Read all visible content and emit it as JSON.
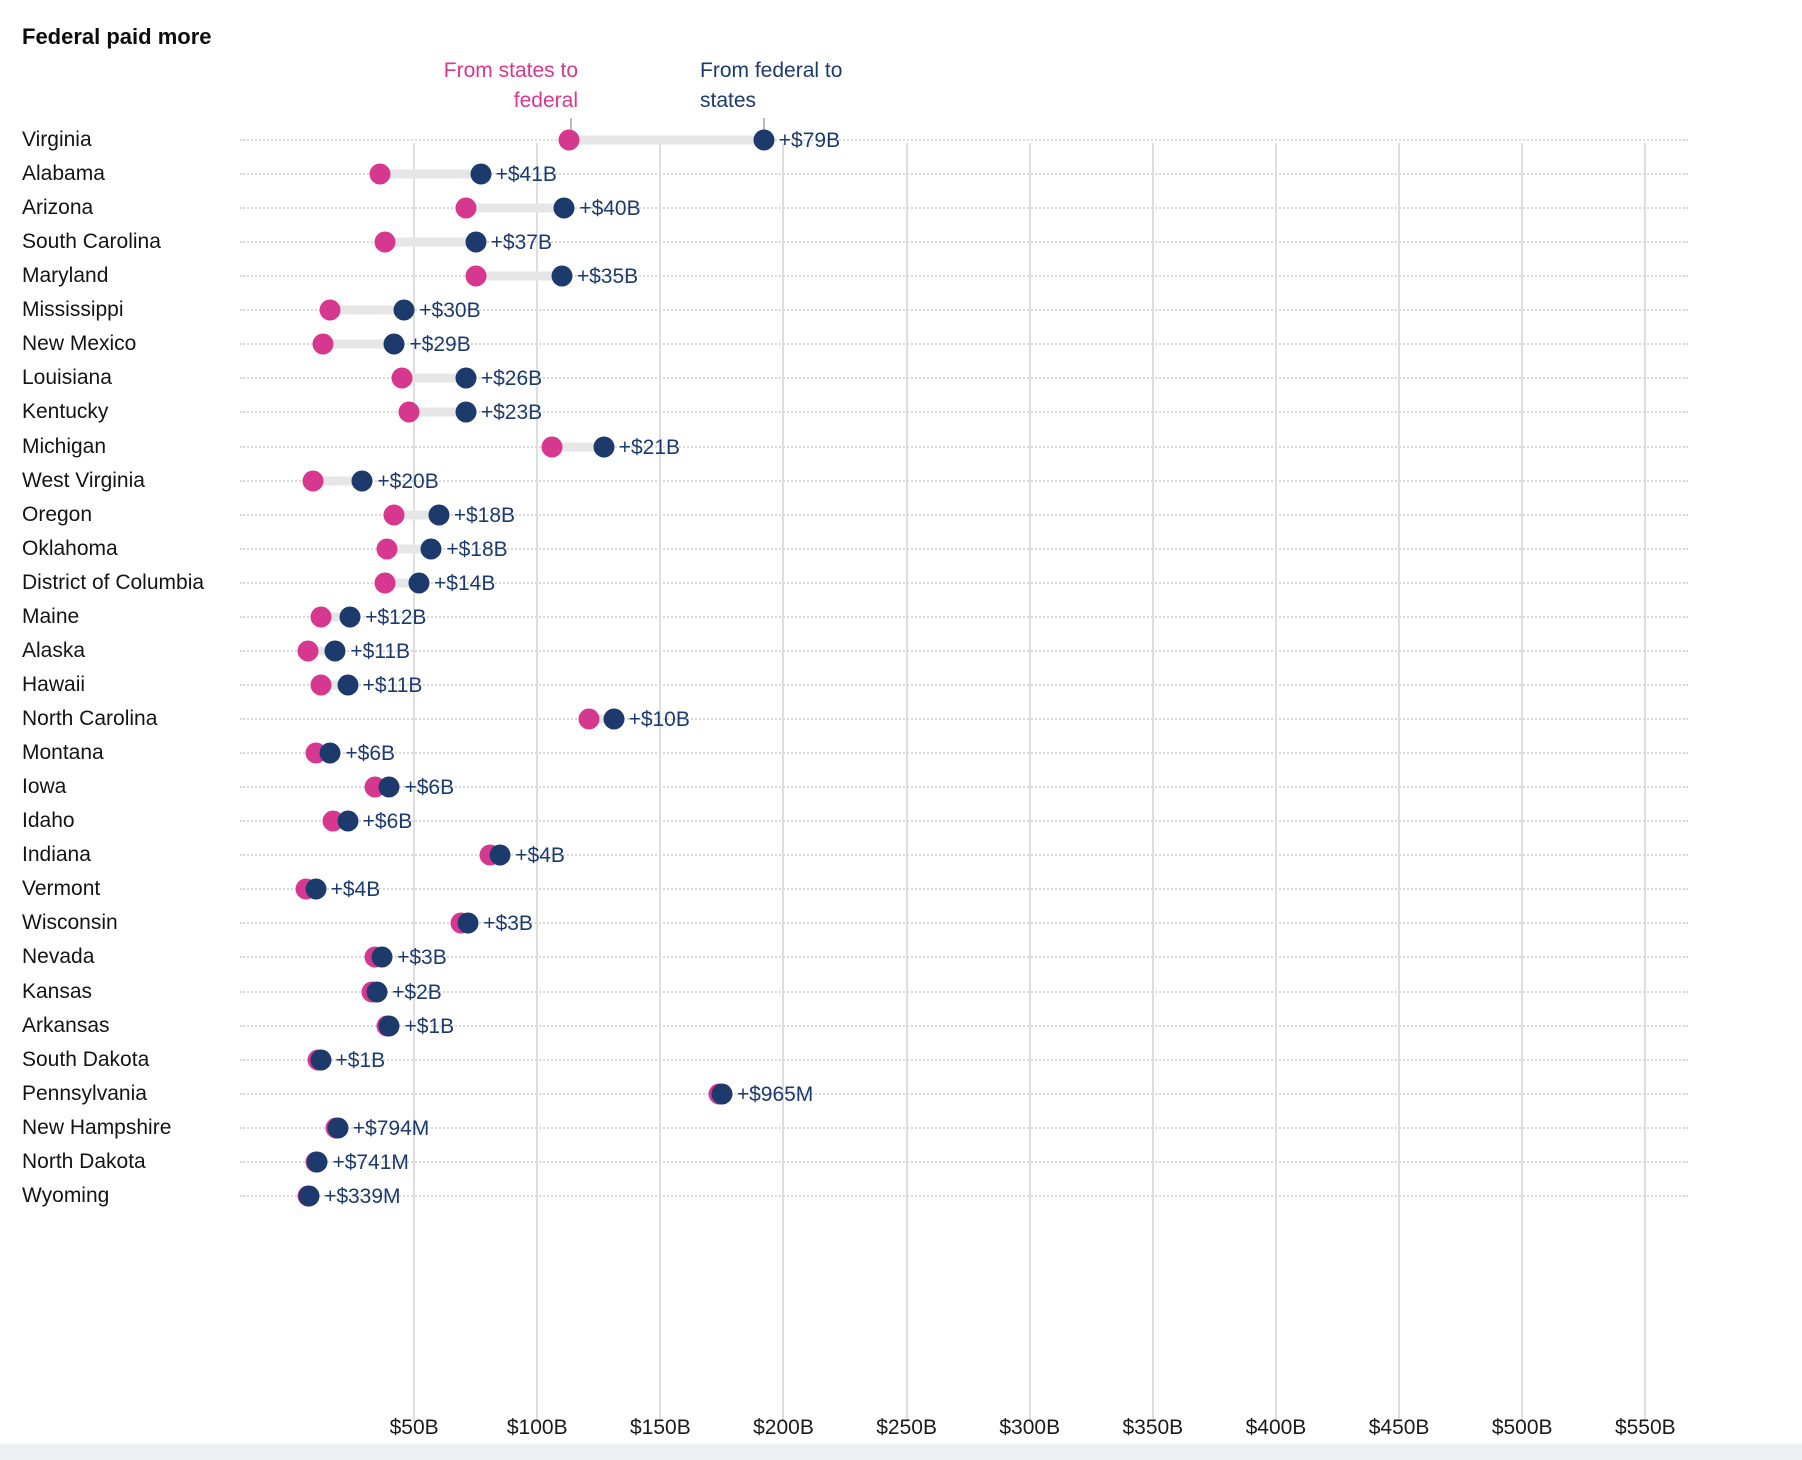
{
  "title": "Federal paid more",
  "legend": {
    "pink_label_line1": "From states to",
    "pink_label_line2": "federal",
    "navy_label_line1": "From federal to",
    "navy_label_line2": "states"
  },
  "colors": {
    "pink": "#d6378f",
    "navy": "#1d3a6d",
    "value_text": "#1d3a6d",
    "gridline": "#dedede",
    "guide_dotted": "#d9d9d9",
    "connector": "#e6e6e6"
  },
  "chart_data": {
    "type": "dumbbell",
    "title": "Federal paid more",
    "series": [
      {
        "name": "From states to federal",
        "color": "#d6378f"
      },
      {
        "name": "From federal to states",
        "color": "#1d3a6d"
      }
    ],
    "unit": "billions of dollars",
    "x_ticks": [
      {
        "value": 50,
        "label": "$50B"
      },
      {
        "value": 100,
        "label": "$100B"
      },
      {
        "value": 150,
        "label": "$150B"
      },
      {
        "value": 200,
        "label": "$200B"
      },
      {
        "value": 250,
        "label": "$250B"
      },
      {
        "value": 300,
        "label": "$300B"
      },
      {
        "value": 350,
        "label": "$350B"
      },
      {
        "value": 400,
        "label": "$400B"
      },
      {
        "value": 450,
        "label": "$450B"
      },
      {
        "value": 500,
        "label": "$500B"
      },
      {
        "value": 550,
        "label": "$550B"
      }
    ],
    "xlim": [
      0,
      580
    ],
    "rows": [
      {
        "state": "Virginia",
        "states_to_federal": 113,
        "federal_to_states": 192,
        "diff_label": "+$79B"
      },
      {
        "state": "Alabama",
        "states_to_federal": 36,
        "federal_to_states": 77,
        "diff_label": "+$41B"
      },
      {
        "state": "Arizona",
        "states_to_federal": 71,
        "federal_to_states": 111,
        "diff_label": "+$40B"
      },
      {
        "state": "South Carolina",
        "states_to_federal": 38,
        "federal_to_states": 75,
        "diff_label": "+$37B"
      },
      {
        "state": "Maryland",
        "states_to_federal": 75,
        "federal_to_states": 110,
        "diff_label": "+$35B"
      },
      {
        "state": "Mississippi",
        "states_to_federal": 16,
        "federal_to_states": 46,
        "diff_label": "+$30B"
      },
      {
        "state": "New Mexico",
        "states_to_federal": 13,
        "federal_to_states": 42,
        "diff_label": "+$29B"
      },
      {
        "state": "Louisiana",
        "states_to_federal": 45,
        "federal_to_states": 71,
        "diff_label": "+$26B"
      },
      {
        "state": "Kentucky",
        "states_to_federal": 48,
        "federal_to_states": 71,
        "diff_label": "+$23B"
      },
      {
        "state": "Michigan",
        "states_to_federal": 106,
        "federal_to_states": 127,
        "diff_label": "+$21B"
      },
      {
        "state": "West Virginia",
        "states_to_federal": 9,
        "federal_to_states": 29,
        "diff_label": "+$20B"
      },
      {
        "state": "Oregon",
        "states_to_federal": 42,
        "federal_to_states": 60,
        "diff_label": "+$18B"
      },
      {
        "state": "Oklahoma",
        "states_to_federal": 39,
        "federal_to_states": 57,
        "diff_label": "+$18B"
      },
      {
        "state": "District of Columbia",
        "states_to_federal": 38,
        "federal_to_states": 52,
        "diff_label": "+$14B"
      },
      {
        "state": "Maine",
        "states_to_federal": 12,
        "federal_to_states": 24,
        "diff_label": "+$12B"
      },
      {
        "state": "Alaska",
        "states_to_federal": 7,
        "federal_to_states": 18,
        "diff_label": "+$11B"
      },
      {
        "state": "Hawaii",
        "states_to_federal": 12,
        "federal_to_states": 23,
        "diff_label": "+$11B"
      },
      {
        "state": "North Carolina",
        "states_to_federal": 121,
        "federal_to_states": 131,
        "diff_label": "+$10B"
      },
      {
        "state": "Montana",
        "states_to_federal": 10,
        "federal_to_states": 16,
        "diff_label": "+$6B"
      },
      {
        "state": "Iowa",
        "states_to_federal": 34,
        "federal_to_states": 40,
        "diff_label": "+$6B"
      },
      {
        "state": "Idaho",
        "states_to_federal": 17,
        "federal_to_states": 23,
        "diff_label": "+$6B"
      },
      {
        "state": "Indiana",
        "states_to_federal": 81,
        "federal_to_states": 85,
        "diff_label": "+$4B"
      },
      {
        "state": "Vermont",
        "states_to_federal": 6,
        "federal_to_states": 10,
        "diff_label": "+$4B"
      },
      {
        "state": "Wisconsin",
        "states_to_federal": 69,
        "federal_to_states": 72,
        "diff_label": "+$3B"
      },
      {
        "state": "Nevada",
        "states_to_federal": 34,
        "federal_to_states": 37,
        "diff_label": "+$3B"
      },
      {
        "state": "Kansas",
        "states_to_federal": 33,
        "federal_to_states": 35,
        "diff_label": "+$2B"
      },
      {
        "state": "Arkansas",
        "states_to_federal": 39,
        "federal_to_states": 40,
        "diff_label": "+$1B"
      },
      {
        "state": "South Dakota",
        "states_to_federal": 11,
        "federal_to_states": 12,
        "diff_label": "+$1B"
      },
      {
        "state": "Pennsylvania",
        "states_to_federal": 174,
        "federal_to_states": 174.965,
        "diff_label": "+$965M"
      },
      {
        "state": "New Hampshire",
        "states_to_federal": 18.2,
        "federal_to_states": 18.994,
        "diff_label": "+$794M"
      },
      {
        "state": "North Dakota",
        "states_to_federal": 10,
        "federal_to_states": 10.741,
        "diff_label": "+$741M"
      },
      {
        "state": "Wyoming",
        "states_to_federal": 7,
        "federal_to_states": 7.339,
        "diff_label": "+$339M"
      }
    ]
  }
}
